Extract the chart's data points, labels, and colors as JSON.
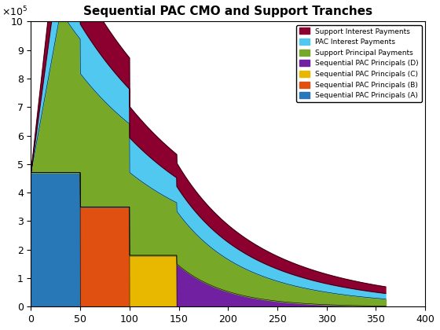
{
  "title": "Sequential PAC CMO and Support Tranches",
  "xlim": [
    0,
    400
  ],
  "ylim": [
    0,
    1000000
  ],
  "ytick_scale": 100000,
  "colors": {
    "A": "#2878b8",
    "B": "#e05010",
    "C": "#e8b800",
    "D": "#7020a0",
    "support_principal": "#78a828",
    "pac_interest": "#50c8f0",
    "support_interest": "#8c0030"
  },
  "legend_entries": [
    [
      "Support Interest Payments",
      "#8c0030"
    ],
    [
      "PAC Interest Payments",
      "#50c8f0"
    ],
    [
      "Support Principal Payments",
      "#78a828"
    ],
    [
      "Sequential PAC Principals (D)",
      "#7020a0"
    ],
    [
      "Sequential PAC Principals (C)",
      "#e8b800"
    ],
    [
      "Sequential PAC Principals (B)",
      "#e05010"
    ],
    [
      "Sequential PAC Principals (A)",
      "#2878b8"
    ]
  ]
}
